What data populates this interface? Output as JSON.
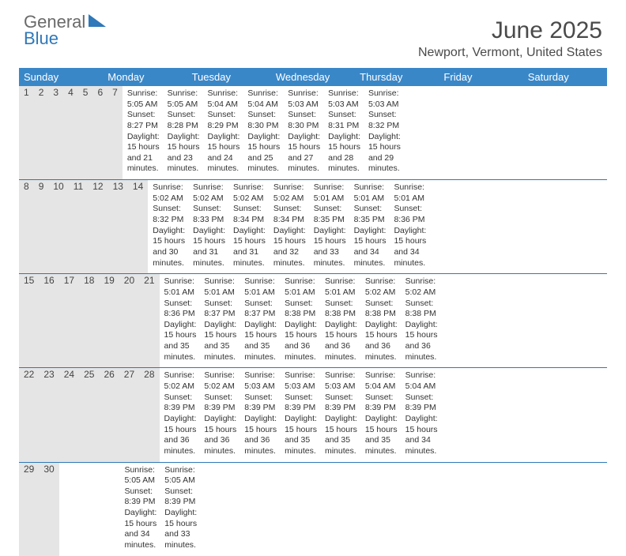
{
  "logo": {
    "top": "General",
    "bottom": "Blue"
  },
  "title": "June 2025",
  "subtitle": "Newport, Vermont, United States",
  "colors": {
    "header_bg": "#3a87c8",
    "header_text": "#ffffff",
    "daynum_bg": "#e5e5e5",
    "rule": "#2f78b9"
  },
  "weekday_headers": [
    "Sunday",
    "Monday",
    "Tuesday",
    "Wednesday",
    "Thursday",
    "Friday",
    "Saturday"
  ],
  "weeks": [
    [
      {
        "n": "1",
        "sunrise": "5:05 AM",
        "sunset": "8:27 PM",
        "dayl": "15 hours and 21 minutes."
      },
      {
        "n": "2",
        "sunrise": "5:05 AM",
        "sunset": "8:28 PM",
        "dayl": "15 hours and 23 minutes."
      },
      {
        "n": "3",
        "sunrise": "5:04 AM",
        "sunset": "8:29 PM",
        "dayl": "15 hours and 24 minutes."
      },
      {
        "n": "4",
        "sunrise": "5:04 AM",
        "sunset": "8:30 PM",
        "dayl": "15 hours and 25 minutes."
      },
      {
        "n": "5",
        "sunrise": "5:03 AM",
        "sunset": "8:30 PM",
        "dayl": "15 hours and 27 minutes."
      },
      {
        "n": "6",
        "sunrise": "5:03 AM",
        "sunset": "8:31 PM",
        "dayl": "15 hours and 28 minutes."
      },
      {
        "n": "7",
        "sunrise": "5:03 AM",
        "sunset": "8:32 PM",
        "dayl": "15 hours and 29 minutes."
      }
    ],
    [
      {
        "n": "8",
        "sunrise": "5:02 AM",
        "sunset": "8:32 PM",
        "dayl": "15 hours and 30 minutes."
      },
      {
        "n": "9",
        "sunrise": "5:02 AM",
        "sunset": "8:33 PM",
        "dayl": "15 hours and 31 minutes."
      },
      {
        "n": "10",
        "sunrise": "5:02 AM",
        "sunset": "8:34 PM",
        "dayl": "15 hours and 31 minutes."
      },
      {
        "n": "11",
        "sunrise": "5:02 AM",
        "sunset": "8:34 PM",
        "dayl": "15 hours and 32 minutes."
      },
      {
        "n": "12",
        "sunrise": "5:01 AM",
        "sunset": "8:35 PM",
        "dayl": "15 hours and 33 minutes."
      },
      {
        "n": "13",
        "sunrise": "5:01 AM",
        "sunset": "8:35 PM",
        "dayl": "15 hours and 34 minutes."
      },
      {
        "n": "14",
        "sunrise": "5:01 AM",
        "sunset": "8:36 PM",
        "dayl": "15 hours and 34 minutes."
      }
    ],
    [
      {
        "n": "15",
        "sunrise": "5:01 AM",
        "sunset": "8:36 PM",
        "dayl": "15 hours and 35 minutes."
      },
      {
        "n": "16",
        "sunrise": "5:01 AM",
        "sunset": "8:37 PM",
        "dayl": "15 hours and 35 minutes."
      },
      {
        "n": "17",
        "sunrise": "5:01 AM",
        "sunset": "8:37 PM",
        "dayl": "15 hours and 35 minutes."
      },
      {
        "n": "18",
        "sunrise": "5:01 AM",
        "sunset": "8:38 PM",
        "dayl": "15 hours and 36 minutes."
      },
      {
        "n": "19",
        "sunrise": "5:01 AM",
        "sunset": "8:38 PM",
        "dayl": "15 hours and 36 minutes."
      },
      {
        "n": "20",
        "sunrise": "5:02 AM",
        "sunset": "8:38 PM",
        "dayl": "15 hours and 36 minutes."
      },
      {
        "n": "21",
        "sunrise": "5:02 AM",
        "sunset": "8:38 PM",
        "dayl": "15 hours and 36 minutes."
      }
    ],
    [
      {
        "n": "22",
        "sunrise": "5:02 AM",
        "sunset": "8:39 PM",
        "dayl": "15 hours and 36 minutes."
      },
      {
        "n": "23",
        "sunrise": "5:02 AM",
        "sunset": "8:39 PM",
        "dayl": "15 hours and 36 minutes."
      },
      {
        "n": "24",
        "sunrise": "5:03 AM",
        "sunset": "8:39 PM",
        "dayl": "15 hours and 36 minutes."
      },
      {
        "n": "25",
        "sunrise": "5:03 AM",
        "sunset": "8:39 PM",
        "dayl": "15 hours and 35 minutes."
      },
      {
        "n": "26",
        "sunrise": "5:03 AM",
        "sunset": "8:39 PM",
        "dayl": "15 hours and 35 minutes."
      },
      {
        "n": "27",
        "sunrise": "5:04 AM",
        "sunset": "8:39 PM",
        "dayl": "15 hours and 35 minutes."
      },
      {
        "n": "28",
        "sunrise": "5:04 AM",
        "sunset": "8:39 PM",
        "dayl": "15 hours and 34 minutes."
      }
    ],
    [
      {
        "n": "29",
        "sunrise": "5:05 AM",
        "sunset": "8:39 PM",
        "dayl": "15 hours and 34 minutes."
      },
      {
        "n": "30",
        "sunrise": "5:05 AM",
        "sunset": "8:39 PM",
        "dayl": "15 hours and 33 minutes."
      },
      null,
      null,
      null,
      null,
      null
    ]
  ]
}
